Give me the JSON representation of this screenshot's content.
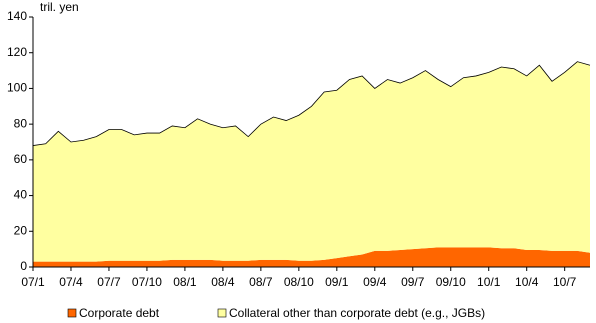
{
  "chart_data": {
    "type": "stacked-area",
    "y_label": "tril. yen",
    "categories": [
      "07/1",
      null,
      null,
      "07/4",
      null,
      null,
      "07/7",
      null,
      null,
      "07/10",
      null,
      null,
      "08/1",
      null,
      null,
      "08/4",
      null,
      null,
      "08/7",
      null,
      null,
      "08/10",
      null,
      null,
      "09/1",
      null,
      null,
      "09/4",
      null,
      null,
      "09/7",
      null,
      null,
      "09/10",
      null,
      null,
      "10/1",
      null,
      null,
      "10/4",
      null,
      null,
      "10/7",
      null,
      null
    ],
    "series": [
      {
        "name": "Corporate debt",
        "color": "#ff6600",
        "values": [
          3,
          3,
          3,
          3,
          3,
          3,
          3.5,
          3.5,
          3.5,
          3.5,
          3.5,
          4,
          4,
          4,
          4,
          3.5,
          3.5,
          3.5,
          4,
          4,
          4,
          3.5,
          3.5,
          4,
          5,
          6,
          7,
          9,
          9,
          9.5,
          10,
          10.5,
          11,
          11,
          11,
          11,
          11,
          10.5,
          10.5,
          9.5,
          9.5,
          9,
          9,
          9,
          8
        ]
      },
      {
        "name": "Collateral other than corporate debt (e.g., JGBs)",
        "color": "#ffffa0",
        "values": [
          65,
          66,
          73,
          67,
          68,
          70,
          73.5,
          73.5,
          70.5,
          71.5,
          71.5,
          75,
          74,
          79,
          76,
          74.5,
          75.5,
          69.5,
          76,
          80,
          78,
          81.5,
          86.5,
          94,
          94,
          99,
          100,
          91,
          96,
          93.5,
          96,
          99.5,
          94,
          90,
          95,
          96,
          98,
          101.5,
          100.5,
          97.5,
          103.5,
          95,
          100,
          106,
          105
        ]
      }
    ],
    "ylim": [
      0,
      140
    ],
    "yticks": [
      0,
      20,
      40,
      60,
      80,
      100,
      120,
      140
    ],
    "grid": false
  }
}
